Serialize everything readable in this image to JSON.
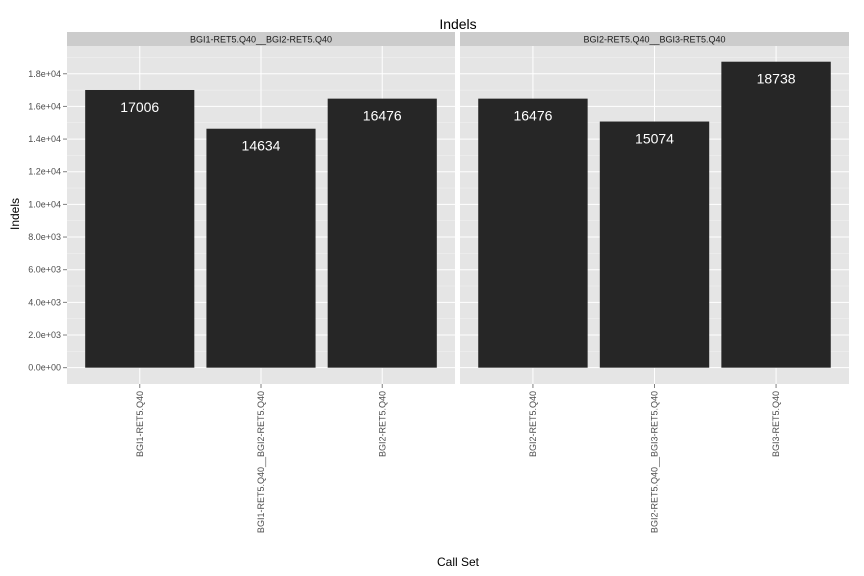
{
  "chart_data": {
    "type": "bar",
    "title": "Indels",
    "xlabel": "Call Set",
    "ylabel": "Indels",
    "ylim": [
      -1000,
      19700
    ],
    "y_ticks": [
      0,
      2000,
      4000,
      6000,
      8000,
      10000,
      12000,
      14000,
      16000,
      18000
    ],
    "y_tick_labels": [
      "0.0e+00",
      "2.0e+03",
      "4.0e+03",
      "6.0e+03",
      "8.0e+03",
      "1.0e+04",
      "1.2e+04",
      "1.4e+04",
      "1.6e+04",
      "1.8e+04"
    ],
    "grid": true,
    "legend": "none",
    "bar_color": "#262626",
    "panel_color": "#e5e5e5",
    "strip_color": "#cccccc",
    "panels": [
      {
        "strip": "BGI1-RET5.Q40__BGI2-RET5.Q40",
        "categories": [
          "BGI1-RET5.Q40",
          "BGI1-RET5.Q40__BGI2-RET5.Q40",
          "BGI2-RET5.Q40"
        ],
        "values": [
          17006,
          14634,
          16476
        ],
        "labels": [
          "17006",
          "14634",
          "16476"
        ]
      },
      {
        "strip": "BGI2-RET5.Q40__BGI3-RET5.Q40",
        "categories": [
          "BGI2-RET5.Q40",
          "BGI2-RET5.Q40__BGI3-RET5.Q40",
          "BGI3-RET5.Q40"
        ],
        "values": [
          16476,
          15074,
          18738
        ],
        "labels": [
          "16476",
          "15074",
          "18738"
        ]
      }
    ]
  }
}
